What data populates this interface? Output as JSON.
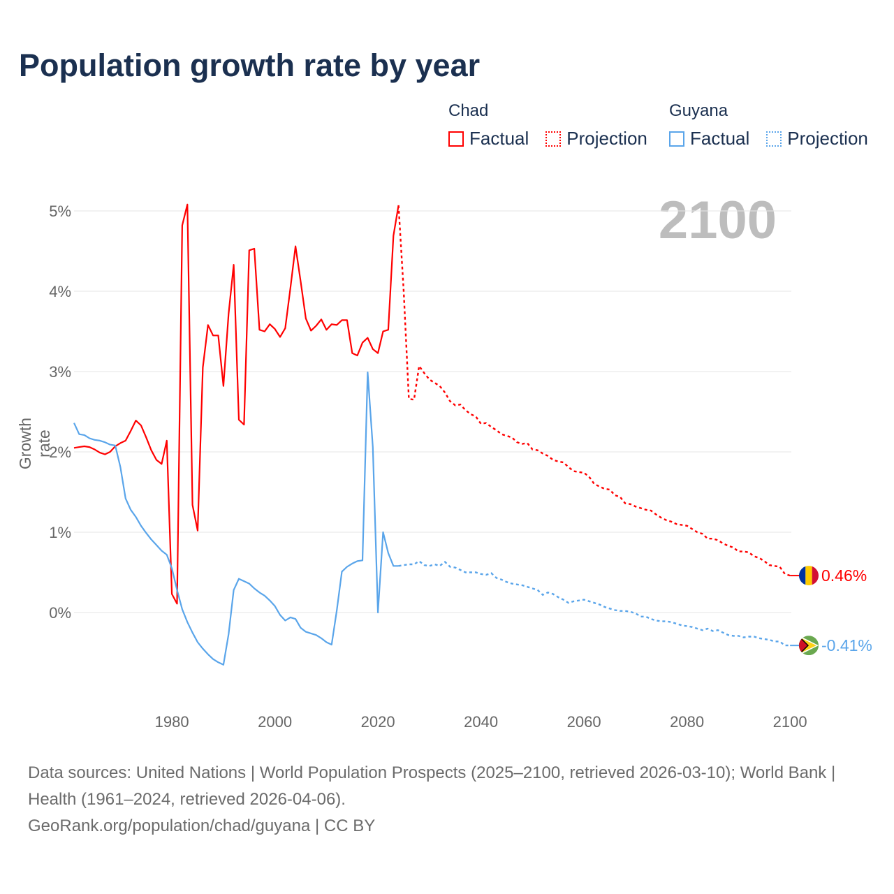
{
  "chart_data": {
    "type": "line",
    "title": "Population growth rate by year",
    "ylabel": "Growth rate",
    "xlabel": "",
    "xlim": [
      1961,
      2100
    ],
    "ylim": [
      -1.1,
      5.2
    ],
    "x_ticks": [
      1980,
      2000,
      2020,
      2040,
      2060,
      2080,
      2100
    ],
    "x_tick_labels": [
      "1980",
      "2000",
      "2020",
      "2040",
      "2060",
      "2080",
      "2100"
    ],
    "y_ticks": [
      0,
      1,
      2,
      3,
      4,
      5
    ],
    "y_tick_labels": [
      "0%",
      "1%",
      "2%",
      "3%",
      "4%",
      "5%"
    ],
    "grid": true,
    "legend_position": "top-right",
    "current_year_label": "2100",
    "series": [
      {
        "name": "Chad",
        "color": "#ff0000",
        "end_label": "0.46%",
        "factual_label": "Factual",
        "projection_label": "Projection",
        "factual_start": 1961,
        "factual": [
          2.05,
          2.06,
          2.07,
          2.06,
          2.03,
          1.99,
          1.97,
          2.0,
          2.07,
          2.11,
          2.14,
          2.26,
          2.39,
          2.33,
          2.18,
          2.02,
          1.9,
          1.85,
          2.14,
          0.23,
          0.11,
          4.82,
          5.08,
          1.34,
          1.02,
          3.05,
          3.58,
          3.45,
          3.45,
          2.82,
          3.72,
          4.33,
          2.4,
          2.34,
          4.51,
          4.53,
          3.52,
          3.5,
          3.59,
          3.53,
          3.43,
          3.54,
          4.04,
          4.56,
          4.12,
          3.66,
          3.51,
          3.57,
          3.65,
          3.52,
          3.59,
          3.58,
          3.64,
          3.64,
          3.23,
          3.2,
          3.36,
          3.42,
          3.28,
          3.23,
          3.5,
          3.52,
          4.69,
          5.07
        ],
        "projection_start": 2025,
        "projection": [
          4.0,
          2.66,
          2.65,
          3.07,
          2.98,
          2.9,
          2.86,
          2.82,
          2.74,
          2.63,
          2.58,
          2.59,
          2.52,
          2.47,
          2.44,
          2.35,
          2.36,
          2.31,
          2.27,
          2.22,
          2.2,
          2.18,
          2.12,
          2.1,
          2.11,
          2.03,
          2.02,
          1.98,
          1.95,
          1.9,
          1.88,
          1.87,
          1.81,
          1.76,
          1.75,
          1.74,
          1.69,
          1.6,
          1.57,
          1.54,
          1.53,
          1.46,
          1.44,
          1.36,
          1.35,
          1.32,
          1.3,
          1.28,
          1.27,
          1.22,
          1.18,
          1.15,
          1.13,
          1.1,
          1.09,
          1.08,
          1.04,
          1.0,
          0.98,
          0.92,
          0.92,
          0.9,
          0.86,
          0.83,
          0.81,
          0.76,
          0.76,
          0.75,
          0.7,
          0.68,
          0.64,
          0.59,
          0.58,
          0.57,
          0.48,
          0.46
        ]
      },
      {
        "name": "Guyana",
        "color": "#5aa5ea",
        "end_label": "-0.41%",
        "factual_label": "Factual",
        "projection_label": "Projection",
        "factual_start": 1961,
        "factual": [
          2.36,
          2.22,
          2.21,
          2.17,
          2.15,
          2.14,
          2.12,
          2.09,
          2.08,
          1.81,
          1.42,
          1.28,
          1.19,
          1.08,
          0.99,
          0.91,
          0.84,
          0.77,
          0.72,
          0.55,
          0.28,
          0.04,
          -0.12,
          -0.25,
          -0.37,
          -0.45,
          -0.52,
          -0.58,
          -0.62,
          -0.65,
          -0.27,
          0.28,
          0.42,
          0.39,
          0.36,
          0.3,
          0.25,
          0.21,
          0.15,
          0.08,
          -0.03,
          -0.1,
          -0.06,
          -0.08,
          -0.19,
          -0.24,
          -0.26,
          -0.28,
          -0.32,
          -0.37,
          -0.4,
          0.02,
          0.51,
          0.57,
          0.61,
          0.64,
          0.65,
          2.99,
          2.06,
          0.0,
          1.0,
          0.74,
          0.58,
          0.58
        ],
        "projection_start": 2025,
        "projection": [
          0.59,
          0.6,
          0.6,
          0.64,
          0.59,
          0.58,
          0.6,
          0.58,
          0.63,
          0.57,
          0.56,
          0.53,
          0.5,
          0.5,
          0.5,
          0.48,
          0.47,
          0.49,
          0.43,
          0.41,
          0.38,
          0.36,
          0.35,
          0.34,
          0.32,
          0.3,
          0.28,
          0.22,
          0.25,
          0.23,
          0.19,
          0.16,
          0.12,
          0.14,
          0.15,
          0.16,
          0.14,
          0.12,
          0.1,
          0.07,
          0.05,
          0.03,
          0.02,
          0.02,
          0.01,
          -0.01,
          -0.05,
          -0.05,
          -0.08,
          -0.1,
          -0.11,
          -0.11,
          -0.12,
          -0.14,
          -0.16,
          -0.17,
          -0.18,
          -0.2,
          -0.22,
          -0.2,
          -0.23,
          -0.22,
          -0.25,
          -0.28,
          -0.29,
          -0.29,
          -0.31,
          -0.3,
          -0.3,
          -0.32,
          -0.33,
          -0.34,
          -0.36,
          -0.36,
          -0.41,
          -0.41
        ]
      }
    ]
  },
  "footer": {
    "sources": "Data sources: United Nations | World Population Prospects (2025–2100, retrieved 2026-03-10); World Bank | Health (1961–2024, retrieved 2026-04-06).",
    "credit": "GeoRank.org/population/chad/guyana | CC BY"
  }
}
